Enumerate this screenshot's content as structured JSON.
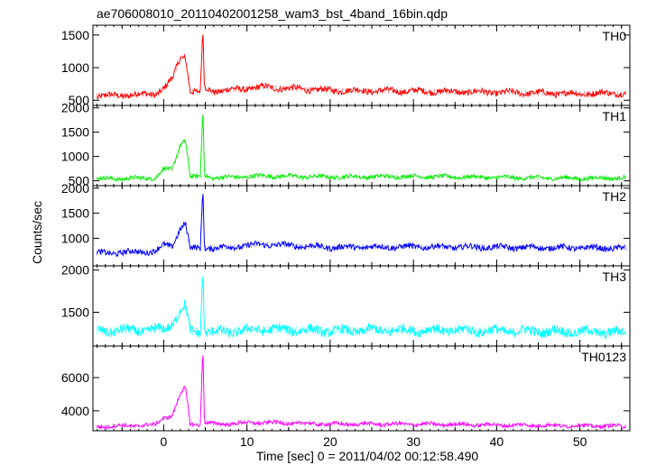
{
  "chart_data": {
    "type": "line",
    "title": "ae706008010_20110402001258_wam3_bst_4band_16bin.qdp",
    "xlabel": "Time [sec] 0 = 2011/04/02 00:12:58.490",
    "ylabel": "Counts/sec",
    "xlim": [
      -8.5,
      56
    ],
    "x_ticks": [
      0,
      10,
      20,
      30,
      40,
      50
    ],
    "grid": false,
    "panels": [
      {
        "name": "TH0",
        "color": "#ff0000",
        "ylim": [
          420,
          1650
        ],
        "y_ticks": [
          500,
          1000,
          1500
        ],
        "baseline": 620,
        "noise": 45,
        "points": [
          [
            -8,
            560
          ],
          [
            -1,
            600
          ],
          [
            0,
            680
          ],
          [
            1,
            820
          ],
          [
            2,
            1150
          ],
          [
            2.6,
            1180
          ],
          [
            3.2,
            640
          ],
          [
            4.4,
            620
          ],
          [
            4.7,
            1600
          ],
          [
            4.9,
            680
          ],
          [
            6,
            640
          ],
          [
            12,
            700
          ],
          [
            20,
            650
          ],
          [
            30,
            640
          ],
          [
            40,
            620
          ],
          [
            50,
            600
          ],
          [
            55.5,
            610
          ]
        ]
      },
      {
        "name": "TH1",
        "color": "#00ee00",
        "ylim": [
          400,
          2050
        ],
        "y_ticks": [
          500,
          1000,
          1500,
          2000
        ],
        "baseline": 560,
        "noise": 40,
        "points": [
          [
            -8,
            540
          ],
          [
            -1,
            560
          ],
          [
            0,
            740
          ],
          [
            1,
            720
          ],
          [
            2,
            1250
          ],
          [
            2.6,
            1350
          ],
          [
            3.2,
            580
          ],
          [
            4.4,
            580
          ],
          [
            4.7,
            2000
          ],
          [
            4.9,
            620
          ],
          [
            6,
            560
          ],
          [
            12,
            600
          ],
          [
            20,
            580
          ],
          [
            30,
            590
          ],
          [
            40,
            570
          ],
          [
            50,
            550
          ],
          [
            55.5,
            560
          ]
        ]
      },
      {
        "name": "TH2",
        "color": "#0000ff",
        "ylim": [
          450,
          2050
        ],
        "y_ticks": [
          1000,
          1500,
          2000
        ],
        "baseline": 780,
        "noise": 55,
        "points": [
          [
            -8,
            700
          ],
          [
            -1,
            740
          ],
          [
            0,
            860
          ],
          [
            1,
            840
          ],
          [
            2,
            1200
          ],
          [
            2.6,
            1300
          ],
          [
            3.2,
            800
          ],
          [
            4.4,
            800
          ],
          [
            4.7,
            2000
          ],
          [
            4.9,
            820
          ],
          [
            6,
            800
          ],
          [
            12,
            880
          ],
          [
            20,
            820
          ],
          [
            30,
            830
          ],
          [
            40,
            820
          ],
          [
            50,
            810
          ],
          [
            55.5,
            800
          ]
        ]
      },
      {
        "name": "TH3",
        "color": "#00ffff",
        "ylim": [
          1100,
          2050
        ],
        "y_ticks": [
          1500,
          2000
        ],
        "baseline": 1270,
        "noise": 55,
        "points": [
          [
            -8,
            1280
          ],
          [
            -1,
            1290
          ],
          [
            0,
            1300
          ],
          [
            1,
            1360
          ],
          [
            2,
            1520
          ],
          [
            2.6,
            1580
          ],
          [
            3.2,
            1270
          ],
          [
            4.4,
            1270
          ],
          [
            4.7,
            2000
          ],
          [
            4.9,
            1280
          ],
          [
            6,
            1260
          ],
          [
            12,
            1300
          ],
          [
            20,
            1280
          ],
          [
            30,
            1290
          ],
          [
            40,
            1280
          ],
          [
            50,
            1270
          ],
          [
            55.5,
            1260
          ]
        ]
      },
      {
        "name": "TH0123",
        "color": "#ff00ff",
        "ylim": [
          2800,
          7900
        ],
        "y_ticks": [
          4000,
          6000
        ],
        "baseline": 3150,
        "noise": 110,
        "points": [
          [
            -8,
            3050
          ],
          [
            -1,
            3150
          ],
          [
            0,
            3600
          ],
          [
            1,
            3700
          ],
          [
            2,
            5000
          ],
          [
            2.6,
            5400
          ],
          [
            3.2,
            3200
          ],
          [
            4.4,
            3200
          ],
          [
            4.7,
            7800
          ],
          [
            4.9,
            3300
          ],
          [
            6,
            3200
          ],
          [
            12,
            3300
          ],
          [
            20,
            3200
          ],
          [
            30,
            3200
          ],
          [
            40,
            3150
          ],
          [
            50,
            3100
          ],
          [
            55.5,
            3080
          ]
        ]
      }
    ]
  }
}
